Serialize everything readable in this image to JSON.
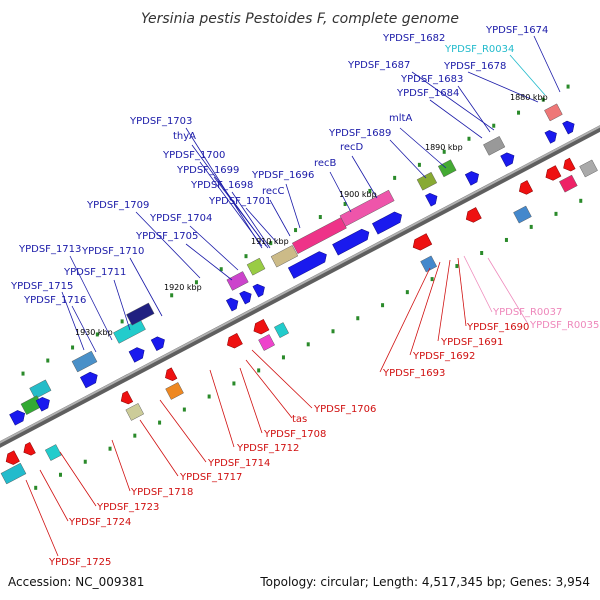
{
  "title": "Yersinia pestis Pestoides F, complete genome",
  "accession": "Accession: NC_009381",
  "topology": "Topology: circular; Length: 4,517,345 bp; Genes: 3,954",
  "kbp_ticks": [
    "1880 kbp",
    "1890 kbp",
    "1900 kbp",
    "1910 kbp",
    "1920 kbp",
    "1930 kbp"
  ],
  "colors": {
    "forward_label": "#1a1aa8",
    "reverse_label": "#d01010",
    "rna_forward_label": "#22bbcc",
    "rna_reverse_label": "#ee88bb",
    "backbone": "#808080"
  },
  "labels_forward": [
    "YPDSF_1674",
    "YPDSF_1682",
    "YPDSF_1678",
    "YPDSF_1687",
    "YPDSF_1683",
    "YPDSF_1684",
    "mltA",
    "YPDSF_1689",
    "recD",
    "recB",
    "YPDSF_1703",
    "thyA",
    "YPDSF_1700",
    "YPDSF_1699",
    "YPDSF_1698",
    "YPDSF_1696",
    "recC",
    "YPDSF_1701",
    "YPDSF_1709",
    "YPDSF_1704",
    "YPDSF_1705",
    "YPDSF_1713",
    "YPDSF_1710",
    "YPDSF_1711",
    "YPDSF_1715",
    "YPDSF_1716"
  ],
  "labels_rna_forward": [
    "YPDSF_R0034"
  ],
  "labels_reverse": [
    "YPDSF_1690",
    "YPDSF_1691",
    "YPDSF_1692",
    "YPDSF_1693",
    "YPDSF_1706",
    "tas",
    "YPDSF_1708",
    "YPDSF_1712",
    "YPDSF_1714",
    "YPDSF_1717",
    "YPDSF_1718",
    "YPDSF_1723",
    "YPDSF_1724",
    "YPDSF_1725"
  ],
  "labels_rna_reverse": [
    "YPDSF_R0037",
    "YPDSF_R0035"
  ]
}
